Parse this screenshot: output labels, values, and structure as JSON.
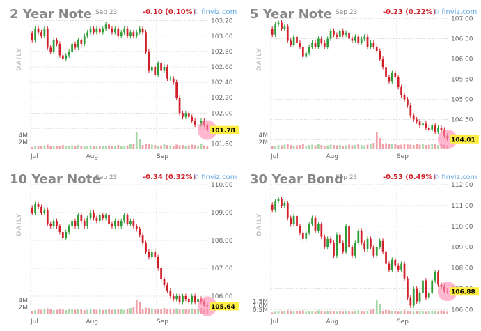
{
  "brand_text": "finviz.com",
  "colors": {
    "up": "#2f9c3a",
    "down": "#d0202a",
    "vol_up": "#a8d8a8",
    "vol_down": "#f0a0a8",
    "highlight": "#ffef44",
    "circle": "#ff88b0"
  },
  "chart_data": [
    {
      "type": "candlestick",
      "title": "2 Year Note",
      "date": "Sep 23",
      "change": "-0.10 (0.10%)",
      "ylabel": "DAILY",
      "x_labels": [
        "Jul",
        "Aug",
        "Sep"
      ],
      "x_label_index": [
        0,
        18,
        41
      ],
      "ylim": [
        101.55,
        103.27
      ],
      "y_ticks": [
        101.6,
        101.8,
        102.0,
        102.2,
        102.4,
        102.6,
        102.8,
        103.0,
        103.2
      ],
      "y_tick_labels": [
        "101.60",
        "101.80",
        "102.00",
        "102.20",
        "102.40",
        "102.60",
        "102.80",
        "103.00",
        "103.20"
      ],
      "vol_max": 6,
      "vol_ticks": [
        2,
        4
      ],
      "vol_tick_labels": [
        "2M",
        "4M"
      ],
      "last": "101.78",
      "closes": [
        102.95,
        103.1,
        103.05,
        103.0,
        103.1,
        102.85,
        102.8,
        102.95,
        102.9,
        102.75,
        102.7,
        102.75,
        102.8,
        102.9,
        102.85,
        102.95,
        102.9,
        103.0,
        103.05,
        103.1,
        103.05,
        103.1,
        103.05,
        103.1,
        103.15,
        103.1,
        103.05,
        103.1,
        103.0,
        103.05,
        103.1,
        103.0,
        103.05,
        103.0,
        103.05,
        103.1,
        103.05,
        102.8,
        102.55,
        102.6,
        102.5,
        102.65,
        102.55,
        102.6,
        102.45,
        102.45,
        102.4,
        102.2,
        102.0,
        101.95,
        102.0,
        101.95,
        101.9,
        101.85,
        101.85,
        101.9,
        101.85,
        101.78
      ],
      "volumes": [
        0.6,
        0.8,
        1.0,
        0.9,
        1.1,
        1.3,
        1.0,
        0.8,
        0.9,
        1.0,
        1.2,
        0.8,
        1.0,
        1.1,
        0.9,
        1.2,
        1.0,
        0.8,
        0.9,
        1.1,
        1.0,
        0.9,
        1.0,
        0.8,
        0.9,
        1.1,
        0.9,
        1.0,
        1.2,
        1.0,
        0.9,
        1.1,
        1.4,
        1.6,
        4.8,
        3.0,
        1.2,
        1.5,
        1.4,
        1.3,
        1.2,
        1.0,
        1.1,
        1.4,
        1.2,
        1.1,
        1.0,
        1.3,
        1.1,
        1.2,
        1.0,
        1.1,
        1.3,
        1.2,
        1.0,
        1.4,
        1.1,
        1.0
      ]
    },
    {
      "type": "candlestick",
      "title": "5 Year Note",
      "date": "Sep 23",
      "change": "-0.23 (0.22%)",
      "ylabel": "DAILY",
      "x_labels": [
        "Jul",
        "Aug",
        "Sep"
      ],
      "x_label_index": [
        0,
        18,
        41
      ],
      "ylim": [
        103.8,
        107.08
      ],
      "y_ticks": [
        104.0,
        104.5,
        105.0,
        105.5,
        106.0,
        106.5,
        107.0
      ],
      "y_tick_labels": [
        "104.00",
        "104.50",
        "105.00",
        "105.50",
        "106.00",
        "106.50",
        "107.00"
      ],
      "vol_max": 6,
      "vol_ticks": [
        2,
        4
      ],
      "vol_tick_labels": [
        "2M",
        "4M"
      ],
      "last": "104.01",
      "closes": [
        106.6,
        106.85,
        106.9,
        106.75,
        106.8,
        106.45,
        106.35,
        106.55,
        106.4,
        106.3,
        106.05,
        106.15,
        106.3,
        106.4,
        106.3,
        106.5,
        106.4,
        106.3,
        106.5,
        106.7,
        106.6,
        106.55,
        106.7,
        106.6,
        106.65,
        106.5,
        106.45,
        106.55,
        106.4,
        106.5,
        106.55,
        106.3,
        106.4,
        106.3,
        106.2,
        106.0,
        105.8,
        105.55,
        105.45,
        105.65,
        105.55,
        105.3,
        105.1,
        105.0,
        104.85,
        104.6,
        104.5,
        104.45,
        104.35,
        104.4,
        104.3,
        104.25,
        104.35,
        104.2,
        104.3,
        104.25,
        104.1,
        104.01
      ],
      "volumes": [
        0.8,
        1.0,
        1.2,
        1.1,
        1.3,
        1.5,
        1.2,
        1.0,
        1.1,
        1.2,
        1.4,
        1.0,
        1.2,
        1.3,
        1.1,
        1.4,
        1.2,
        1.0,
        1.1,
        1.3,
        1.2,
        1.1,
        1.2,
        1.0,
        1.1,
        1.3,
        1.1,
        1.2,
        1.4,
        1.2,
        1.1,
        1.3,
        1.6,
        1.8,
        4.9,
        3.2,
        1.4,
        1.7,
        1.6,
        1.5,
        1.4,
        1.2,
        1.3,
        1.6,
        1.4,
        1.3,
        1.2,
        1.5,
        1.3,
        1.4,
        1.2,
        1.3,
        1.5,
        1.4,
        1.2,
        1.6,
        1.3,
        1.2
      ]
    },
    {
      "type": "candlestick",
      "title": "10 Year Note",
      "date": "Sep 23",
      "change": "-0.34 (0.32%)",
      "ylabel": "DAILY",
      "x_labels": [
        "Jul",
        "Aug",
        "Sep"
      ],
      "x_label_index": [
        0,
        18,
        41
      ],
      "ylim": [
        105.4,
        110.15
      ],
      "y_ticks": [
        106.0,
        107.0,
        108.0,
        109.0,
        110.0
      ],
      "y_tick_labels": [
        "106.00",
        "107.00",
        "108.00",
        "109.00",
        "110.00"
      ],
      "vol_max": 6,
      "vol_ticks": [
        2,
        4
      ],
      "vol_tick_labels": [
        "2M",
        "4M"
      ],
      "last": "105.64",
      "closes": [
        109.0,
        109.3,
        109.2,
        109.0,
        109.1,
        108.6,
        108.5,
        108.7,
        108.5,
        108.3,
        108.1,
        108.3,
        108.5,
        108.7,
        108.5,
        108.9,
        108.7,
        108.5,
        108.8,
        109.0,
        108.8,
        108.7,
        108.9,
        108.8,
        108.9,
        108.6,
        108.5,
        108.7,
        108.5,
        108.7,
        108.9,
        108.6,
        108.7,
        108.5,
        108.4,
        108.2,
        107.9,
        107.6,
        107.4,
        107.6,
        107.4,
        107.0,
        106.6,
        106.4,
        106.2,
        106.0,
        105.9,
        106.0,
        105.8,
        106.0,
        105.9,
        105.8,
        106.0,
        105.8,
        105.9,
        105.8,
        105.7,
        105.64
      ],
      "volumes": [
        1.0,
        1.2,
        1.4,
        1.3,
        1.5,
        1.7,
        1.4,
        1.2,
        1.3,
        1.4,
        1.6,
        1.2,
        1.4,
        1.5,
        1.3,
        1.6,
        1.4,
        1.2,
        1.3,
        1.5,
        1.4,
        1.3,
        1.4,
        1.2,
        1.3,
        1.5,
        1.3,
        1.4,
        1.6,
        1.4,
        1.3,
        1.5,
        1.8,
        2.0,
        4.2,
        3.6,
        1.6,
        1.9,
        1.8,
        1.7,
        1.6,
        1.4,
        1.5,
        1.8,
        1.6,
        1.5,
        1.4,
        1.7,
        1.5,
        1.6,
        1.4,
        1.5,
        1.7,
        1.6,
        1.4,
        1.8,
        1.5,
        1.4
      ]
    },
    {
      "type": "candlestick",
      "title": "30 Year Bond",
      "date": "Sep 23",
      "change": "-0.53 (0.49%)",
      "ylabel": "DAILY",
      "x_labels": [
        "Jul",
        "Aug",
        "Sep"
      ],
      "x_label_index": [
        0,
        18,
        41
      ],
      "ylim": [
        105.85,
        112.2
      ],
      "y_ticks": [
        106.0,
        107.0,
        108.0,
        109.0,
        110.0,
        111.0,
        112.0
      ],
      "y_tick_labels": [
        "106.00",
        "107.00",
        "108.00",
        "109.00",
        "110.00",
        "111.00",
        "112.00"
      ],
      "vol_max": 2.4,
      "vol_ticks": [
        0.5,
        1.0,
        1.5
      ],
      "vol_tick_labels": [
        "0.5M",
        "1.0M",
        "1.5M"
      ],
      "last": "106.88",
      "closes": [
        110.8,
        111.2,
        111.3,
        111.0,
        111.1,
        110.4,
        110.1,
        110.5,
        110.0,
        109.7,
        109.4,
        109.7,
        110.1,
        110.4,
        109.8,
        110.1,
        109.5,
        109.0,
        109.4,
        109.2,
        108.6,
        109.6,
        109.2,
        108.8,
        110.0,
        109.0,
        108.6,
        109.2,
        109.8,
        109.2,
        108.9,
        109.4,
        109.0,
        108.6,
        109.0,
        109.3,
        108.8,
        108.2,
        107.9,
        108.4,
        108.1,
        107.9,
        108.2,
        107.5,
        106.6,
        106.2,
        107.0,
        106.4,
        106.8,
        107.4,
        106.6,
        106.8,
        107.4,
        107.8,
        107.2,
        107.1,
        106.9,
        106.88
      ],
      "volumes": [
        0.2,
        0.3,
        0.35,
        0.3,
        0.4,
        0.45,
        0.35,
        0.3,
        0.35,
        0.4,
        0.45,
        0.3,
        0.35,
        0.4,
        0.3,
        0.45,
        0.35,
        0.3,
        0.35,
        0.4,
        0.35,
        0.3,
        0.35,
        0.3,
        0.35,
        0.4,
        0.3,
        0.35,
        0.45,
        0.35,
        0.3,
        0.4,
        0.5,
        0.6,
        1.7,
        1.2,
        0.4,
        0.5,
        0.45,
        0.4,
        0.35,
        0.3,
        0.35,
        0.45,
        0.4,
        0.35,
        0.3,
        0.4,
        0.35,
        0.4,
        0.3,
        0.35,
        0.4,
        0.35,
        0.3,
        0.45,
        0.35,
        0.3
      ]
    }
  ]
}
